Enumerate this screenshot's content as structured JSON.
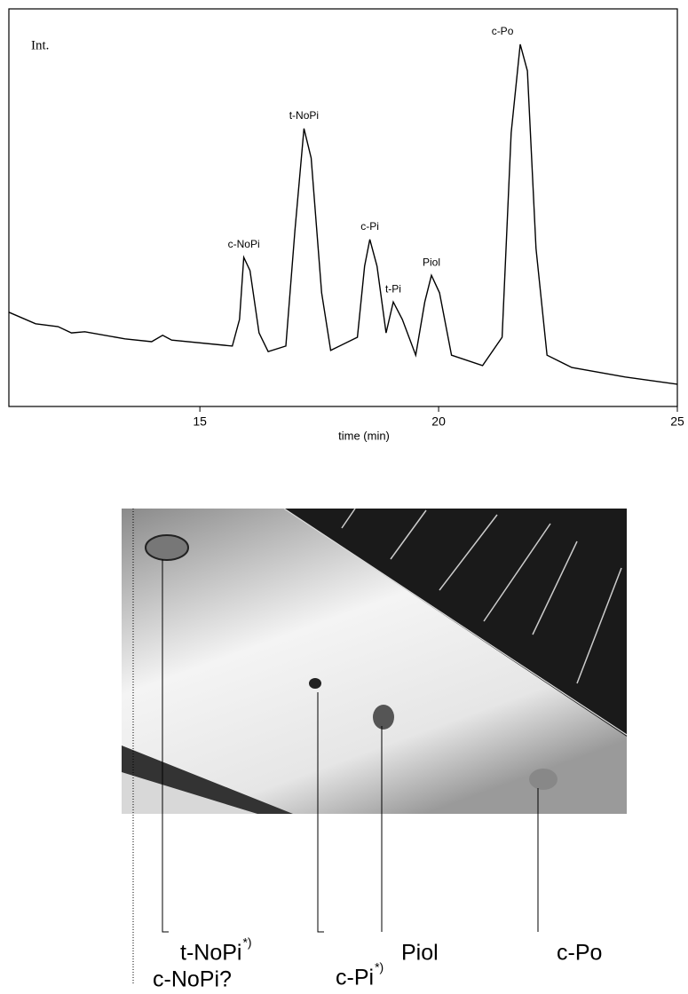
{
  "chart_data": {
    "type": "line",
    "y_label": "Int.",
    "x_label": "time (min)",
    "x": [
      11.0,
      11.56,
      12.03,
      12.31,
      12.59,
      13.43,
      13.99,
      14.22,
      14.41,
      15.68,
      15.83,
      15.92,
      16.05,
      16.24,
      16.43,
      16.8,
      16.99,
      17.18,
      17.33,
      17.55,
      17.74,
      18.3,
      18.45,
      18.56,
      18.71,
      18.9,
      19.05,
      19.24,
      19.52,
      19.71,
      19.85,
      20.02,
      20.27,
      20.92,
      21.33,
      21.52,
      21.71,
      21.86,
      22.04,
      22.27,
      22.79,
      23.91,
      25.0
    ],
    "values": [
      23.7,
      20.8,
      20.1,
      18.5,
      18.8,
      17.0,
      16.3,
      17.9,
      16.7,
      15.2,
      21.9,
      37.5,
      34.2,
      18.5,
      13.8,
      15.2,
      44.2,
      69.9,
      62.5,
      28.6,
      14.1,
      17.4,
      35.3,
      42.0,
      35.3,
      18.5,
      26.3,
      21.9,
      12.9,
      26.3,
      33.0,
      28.6,
      12.9,
      10.3,
      17.4,
      68.8,
      91.1,
      84.4,
      39.7,
      12.9,
      9.8,
      7.4,
      5.6
    ],
    "color": "#000000",
    "xlim": [
      11,
      25
    ],
    "xticks": [
      15,
      20,
      25
    ],
    "ylim": [
      0,
      100
    ],
    "annotations": [
      {
        "text": "c-NoPi",
        "x": 15.92,
        "y": 37.5
      },
      {
        "text": "t-NoPi",
        "x": 17.18,
        "y": 69.9
      },
      {
        "text": "c-Pi",
        "x": 18.56,
        "y": 42.0
      },
      {
        "text": "t-Pi",
        "x": 19.05,
        "y": 26.3
      },
      {
        "text": "Piol",
        "x": 19.85,
        "y": 33.0
      },
      {
        "text": "c-Po",
        "x": 21.71,
        "y": 91.1
      }
    ]
  },
  "photo_labels": [
    {
      "text": "t-NoPi",
      "sup": "*)"
    },
    {
      "text": "c-NoPi?"
    },
    {
      "text": "c-Pi",
      "sup": "*)"
    },
    {
      "text": "Piol"
    },
    {
      "text": "c-Po"
    }
  ]
}
